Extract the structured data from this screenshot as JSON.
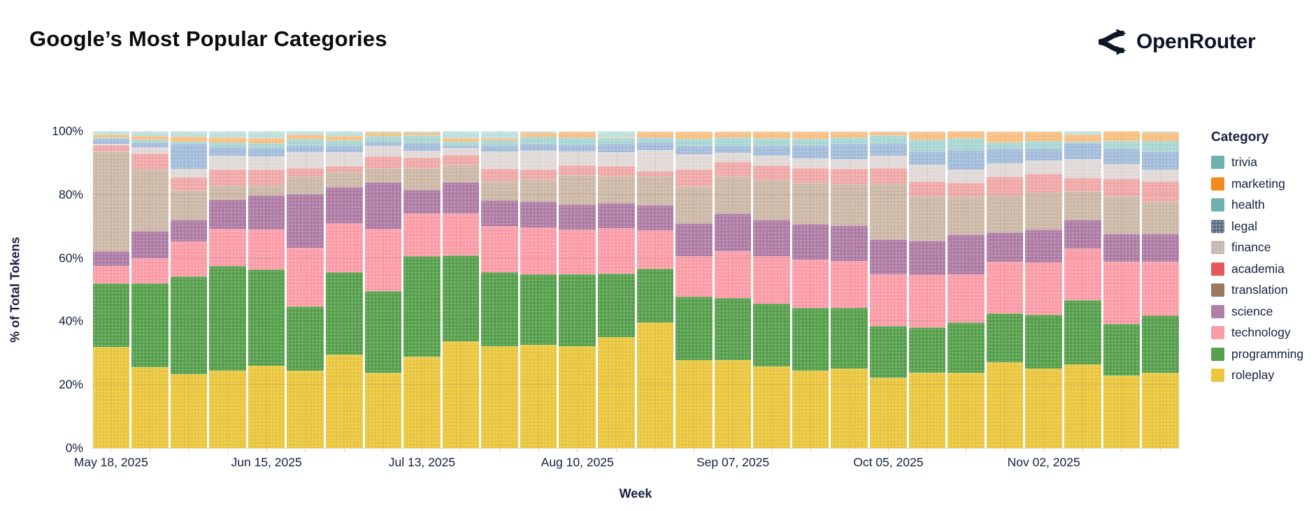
{
  "header": {
    "title": "Google’s Most Popular Categories",
    "brand": "OpenRouter"
  },
  "chart_data": {
    "type": "bar",
    "stacked": true,
    "normalized": true,
    "title": "Google’s Most Popular Categories",
    "xlabel": "Week",
    "ylabel": "% of Total Tokens",
    "ylim": [
      0,
      100
    ],
    "grid": true,
    "legend_title": "Category",
    "legend_position": "right",
    "y_ticks": [
      "0%",
      "20%",
      "40%",
      "60%",
      "80%",
      "100%"
    ],
    "x_tick_labels_shown": [
      "May 18, 2025",
      "Jun 15, 2025",
      "Jul 13, 2025",
      "Aug 10, 2025",
      "Sep 07, 2025",
      "Oct 05, 2025",
      "Nov 02, 2025"
    ],
    "weeks": [
      "May 18, 2025",
      "May 25, 2025",
      "Jun 01, 2025",
      "Jun 08, 2025",
      "Jun 15, 2025",
      "Jun 22, 2025",
      "Jun 29, 2025",
      "Jul 06, 2025",
      "Jul 13, 2025",
      "Jul 20, 2025",
      "Jul 27, 2025",
      "Aug 03, 2025",
      "Aug 10, 2025",
      "Aug 17, 2025",
      "Aug 24, 2025",
      "Aug 31, 2025",
      "Sep 07, 2025",
      "Sep 14, 2025",
      "Sep 21, 2025",
      "Sep 28, 2025",
      "Oct 05, 2025",
      "Oct 12, 2025",
      "Oct 19, 2025",
      "Oct 26, 2025",
      "Nov 02, 2025",
      "Nov 09, 2025",
      "Nov 16, 2025",
      "Nov 23, 2025"
    ],
    "categories": [
      {
        "name": "trivia",
        "swatch_color": "#6FB2AD",
        "bar_color": "#BDE0DC"
      },
      {
        "name": "marketing",
        "swatch_color": "#F08B1E",
        "bar_color": "#F9BE81"
      },
      {
        "name": "health",
        "swatch_color": "#6FB2AD",
        "bar_color": "#A9D6D2"
      },
      {
        "name": "legal",
        "swatch_color": "#5E6B80",
        "bar_color": "#A3BCDA",
        "swatch_pattern_color": "#AEC3CF"
      },
      {
        "name": "finance",
        "swatch_color": "#CDC0B3",
        "bar_color": "#DFD8D6",
        "swatch_pattern_color": "#9FB0C0"
      },
      {
        "name": "academia",
        "swatch_color": "#E4595B",
        "bar_color": "#EFA8A7"
      },
      {
        "name": "translation",
        "swatch_color": "#9C7960",
        "bar_color": "#CCB8A6"
      },
      {
        "name": "science",
        "swatch_color": "#B17EA7",
        "bar_color": "#AF7CA5"
      },
      {
        "name": "technology",
        "swatch_color": "#FA9DA8",
        "bar_color": "#FB9CA7"
      },
      {
        "name": "programming",
        "swatch_color": "#55A14E",
        "bar_color": "#57A04D"
      },
      {
        "name": "roleplay",
        "swatch_color": "#EAC73D",
        "bar_color": "#EAC63E"
      }
    ],
    "series": [
      {
        "name": "trivia",
        "values": [
          1.0,
          1.6,
          1.7,
          1.9,
          2.3,
          1.0,
          1.5,
          0.5,
          0.4,
          2.3,
          2.1,
          0.4,
          0.3,
          2.0,
          0.3,
          0.3,
          0.2,
          0.2,
          0.2,
          0.2,
          0.3,
          0.3,
          0.0,
          0.2,
          0.2,
          1.0,
          0.0,
          0.4
        ]
      },
      {
        "name": "marketing",
        "values": [
          1.0,
          1.1,
          1.5,
          1.6,
          1.5,
          1.5,
          1.3,
          1.1,
          1.0,
          0.9,
          0.7,
          1.3,
          1.7,
          0.2,
          1.7,
          2.1,
          1.8,
          2.0,
          2.1,
          1.8,
          1.0,
          2.3,
          2.1,
          3.2,
          2.8,
          2.4,
          3.0,
          2.6
        ]
      },
      {
        "name": "health",
        "values": [
          0.5,
          0.8,
          0.7,
          1.6,
          1.6,
          1.8,
          1.8,
          1.8,
          2.3,
          1.5,
          1.8,
          2.2,
          2.1,
          1.8,
          1.6,
          2.3,
          2.6,
          2.5,
          2.2,
          1.9,
          2.7,
          3.8,
          3.9,
          2.0,
          2.6,
          0.3,
          2.4,
          3.4
        ]
      },
      {
        "name": "legal",
        "values": [
          1.5,
          1.5,
          7.9,
          2.6,
          2.6,
          2.4,
          2.1,
          1.3,
          2.4,
          0.7,
          1.8,
          2.2,
          2.4,
          2.6,
          2.4,
          2.6,
          2.2,
          3.0,
          4.1,
          5.0,
          3.8,
          4.1,
          6.1,
          4.8,
          3.7,
          5.2,
          5.0,
          5.7
        ]
      },
      {
        "name": "finance",
        "values": [
          0.5,
          2.0,
          2.8,
          4.4,
          4.1,
          5.0,
          4.4,
          3.3,
          2.2,
          2.2,
          5.5,
          5.9,
          4.4,
          4.4,
          6.5,
          4.8,
          2.8,
          3.0,
          3.0,
          3.0,
          3.9,
          5.3,
          4.1,
          4.1,
          4.1,
          5.9,
          4.6,
          3.7
        ]
      },
      {
        "name": "academia",
        "values": [
          2.0,
          5.0,
          4.1,
          5.0,
          4.8,
          2.6,
          1.8,
          3.7,
          3.3,
          3.0,
          3.7,
          3.3,
          3.0,
          3.3,
          1.5,
          5.2,
          4.6,
          4.7,
          4.8,
          4.8,
          4.8,
          4.8,
          4.6,
          5.9,
          5.9,
          4.1,
          5.5,
          6.5
        ]
      },
      {
        "name": "translation",
        "values": [
          31.5,
          19.5,
          9.2,
          4.6,
          3.3,
          5.5,
          4.7,
          4.4,
          7.0,
          5.5,
          6.3,
          7.0,
          9.2,
          8.5,
          9.4,
          11.8,
          11.8,
          12.5,
          13.0,
          13.1,
          17.7,
          14.0,
          11.8,
          11.8,
          11.8,
          9.2,
          11.8,
          10.0
        ]
      },
      {
        "name": "science",
        "values": [
          4.5,
          8.5,
          7.0,
          9.1,
          10.9,
          17.0,
          11.5,
          14.8,
          7.4,
          10.0,
          8.1,
          8.1,
          8.1,
          7.8,
          7.8,
          10.3,
          11.8,
          11.5,
          11.1,
          11.1,
          10.9,
          10.7,
          12.6,
          9.2,
          10.3,
          8.9,
          8.9,
          8.9
        ]
      },
      {
        "name": "technology",
        "values": [
          5.5,
          8.0,
          10.9,
          11.8,
          12.5,
          18.5,
          15.5,
          19.6,
          13.3,
          13.2,
          14.4,
          14.8,
          14.0,
          14.4,
          12.2,
          12.9,
          14.8,
          15.0,
          15.2,
          14.8,
          16.3,
          16.6,
          15.2,
          16.3,
          16.6,
          16.3,
          19.6,
          17.0
        ]
      },
      {
        "name": "programming",
        "values": [
          20.0,
          26.5,
          30.8,
          33.0,
          30.5,
          20.3,
          25.9,
          25.9,
          31.8,
          27.1,
          23.3,
          22.2,
          22.9,
          20.0,
          17.0,
          20.0,
          19.6,
          19.8,
          20.0,
          19.2,
          16.4,
          14.4,
          15.9,
          15.5,
          17.0,
          20.3,
          16.3,
          18.1
        ]
      },
      {
        "name": "roleplay",
        "values": [
          32.0,
          25.5,
          23.4,
          24.4,
          25.9,
          24.4,
          29.6,
          23.7,
          28.8,
          33.6,
          32.2,
          32.5,
          32.1,
          35.1,
          39.6,
          27.7,
          27.7,
          25.8,
          24.4,
          25.1,
          22.2,
          23.7,
          23.7,
          27.0,
          25.1,
          26.5,
          22.9,
          23.7
        ]
      }
    ]
  }
}
